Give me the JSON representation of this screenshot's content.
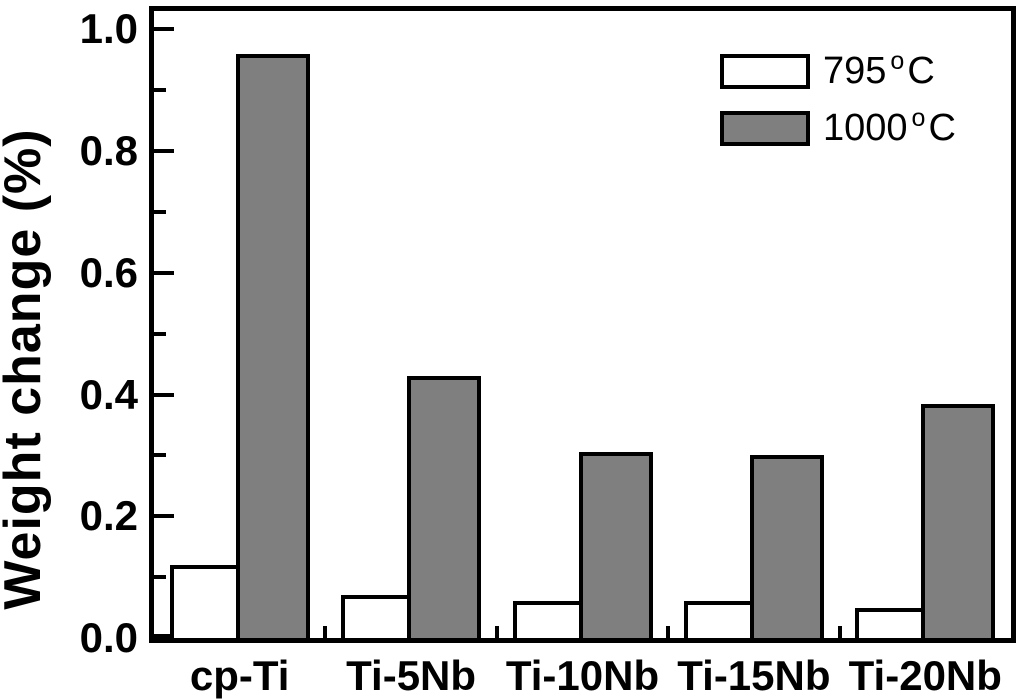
{
  "chart_data": {
    "type": "bar",
    "title": "",
    "xlabel": "",
    "ylabel": "Weight change (%)",
    "categories": [
      "cp-Ti",
      "Ti-5Nb",
      "Ti-10Nb",
      "Ti-15Nb",
      "Ti-20Nb"
    ],
    "series": [
      {
        "name": "795 °C",
        "label_num": "795",
        "label_deg": "o",
        "label_unit": "C",
        "fill": "#ffffff",
        "stroke": "#000000",
        "values": [
          0.12,
          0.07,
          0.06,
          0.06,
          0.05
        ]
      },
      {
        "name": "1000 °C",
        "label_num": "1000",
        "label_deg": "o",
        "label_unit": "C",
        "fill": "#7f7f7f",
        "stroke": "#000000",
        "values": [
          0.96,
          0.43,
          0.305,
          0.3,
          0.385
        ]
      }
    ],
    "ylim": [
      0,
      1.03
    ],
    "yticks_major": [
      0.0,
      0.2,
      0.4,
      0.6,
      0.8,
      1.0
    ],
    "yticks_minor": [
      0.1,
      0.3,
      0.5,
      0.7,
      0.9
    ],
    "ytick_decimals": 1,
    "grid": false,
    "legend_position": "top-right",
    "colors": {
      "axis": "#000000",
      "background": "#ffffff",
      "bar_gray": "#7f7f7f",
      "bar_white": "#ffffff"
    }
  }
}
